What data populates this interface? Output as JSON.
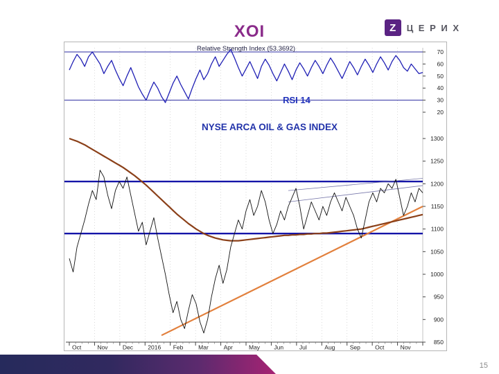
{
  "slide": {
    "title": "XOI",
    "page_number": "15"
  },
  "logo": {
    "glyph": "Z",
    "text": "Ц Е Р И Х",
    "color": "#5a2383"
  },
  "chart_data": [
    {
      "type": "line",
      "title": "Relative Strength Index (53.3692)",
      "label": "RSI 14",
      "current_value": 53.3692,
      "ylim": [
        20,
        75
      ],
      "yticks": [
        70,
        60,
        50,
        40,
        30,
        20
      ],
      "levels": [
        70,
        30
      ],
      "level_color": "#2a2aa0",
      "line_color": "#2020b5",
      "values": [
        55,
        62,
        68,
        64,
        58,
        66,
        70,
        65,
        60,
        52,
        58,
        63,
        55,
        48,
        42,
        50,
        57,
        49,
        41,
        35,
        30,
        38,
        45,
        40,
        33,
        28,
        36,
        44,
        50,
        43,
        37,
        31,
        40,
        48,
        55,
        47,
        52,
        60,
        66,
        58,
        63,
        68,
        72,
        65,
        57,
        50,
        56,
        62,
        55,
        48,
        58,
        64,
        59,
        52,
        46,
        53,
        60,
        54,
        47,
        55,
        61,
        56,
        50,
        57,
        63,
        58,
        52,
        59,
        65,
        60,
        54,
        48,
        55,
        62,
        57,
        51,
        58,
        64,
        59,
        53,
        60,
        66,
        61,
        55,
        62,
        67,
        63,
        57,
        54,
        60,
        56,
        52,
        53
      ]
    },
    {
      "type": "line",
      "title": "NYSE ARCA OIL & GAS INDEX",
      "ylim": [
        850,
        1300
      ],
      "yticks": [
        1300,
        1250,
        1200,
        1150,
        1100,
        1050,
        1000,
        950,
        900,
        850
      ],
      "x_labels": [
        "Oct",
        "Nov",
        "Dec",
        "2016",
        "Feb",
        "Mar",
        "Apr",
        "May",
        "Jun",
        "Jul",
        "Aug",
        "Sep",
        "Oct",
        "Nov"
      ],
      "grid": "vertical-dotted",
      "series": [
        {
          "name": "XOI price",
          "color": "#111111",
          "values": [
            1035,
            1005,
            1060,
            1090,
            1120,
            1155,
            1185,
            1165,
            1230,
            1215,
            1175,
            1145,
            1185,
            1205,
            1190,
            1215,
            1175,
            1135,
            1095,
            1115,
            1065,
            1095,
            1125,
            1080,
            1040,
            1000,
            955,
            915,
            940,
            900,
            880,
            920,
            955,
            935,
            895,
            870,
            900,
            950,
            990,
            1020,
            980,
            1010,
            1060,
            1090,
            1120,
            1100,
            1140,
            1165,
            1130,
            1150,
            1185,
            1160,
            1120,
            1090,
            1110,
            1140,
            1120,
            1150,
            1170,
            1190,
            1150,
            1100,
            1130,
            1160,
            1140,
            1120,
            1150,
            1130,
            1160,
            1180,
            1160,
            1140,
            1170,
            1150,
            1130,
            1100,
            1080,
            1120,
            1160,
            1180,
            1160,
            1190,
            1180,
            1200,
            1190,
            1210,
            1170,
            1130,
            1150,
            1180,
            1160,
            1190,
            1180
          ]
        },
        {
          "name": "moving average",
          "color": "#8b4019",
          "values": [
            1300,
            1297,
            1294,
            1290,
            1286,
            1281,
            1276,
            1271,
            1266,
            1261,
            1256,
            1251,
            1246,
            1241,
            1236,
            1230,
            1224,
            1218,
            1211,
            1204,
            1197,
            1189,
            1181,
            1173,
            1165,
            1157,
            1149,
            1141,
            1133,
            1126,
            1119,
            1112,
            1106,
            1100,
            1095,
            1090,
            1086,
            1083,
            1080,
            1078,
            1076,
            1075,
            1074,
            1074,
            1074,
            1075,
            1076,
            1077,
            1078,
            1079,
            1080,
            1081,
            1082,
            1083,
            1084,
            1085,
            1086,
            1086,
            1087,
            1087,
            1088,
            1088,
            1089,
            1089,
            1090,
            1090,
            1091,
            1091,
            1092,
            1093,
            1094,
            1095,
            1096,
            1097,
            1098,
            1099,
            1100,
            1102,
            1104,
            1106,
            1108,
            1110,
            1112,
            1114,
            1116,
            1118,
            1120,
            1122,
            1124,
            1126,
            1128,
            1130,
            1132
          ]
        }
      ],
      "support_lines": [
        1205,
        1090
      ],
      "support_color": "#1414a8",
      "trend_line": {
        "color": "#e2803d",
        "x1_index": 24,
        "y1": 865,
        "x2_index": 92,
        "y2": 1150
      },
      "annotation_lines": [
        {
          "x1_index": 57,
          "y1": 1185,
          "x2_index": 92,
          "y2": 1212
        },
        {
          "x1_index": 57,
          "y1": 1160,
          "x2_index": 92,
          "y2": 1196
        }
      ],
      "annotation_color": "#7777aa"
    }
  ]
}
